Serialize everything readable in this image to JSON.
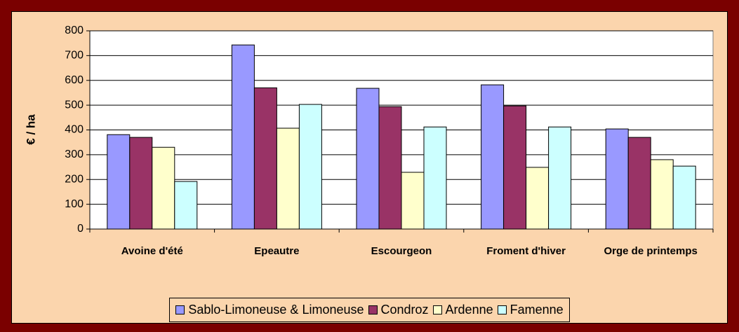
{
  "chart_data": {
    "type": "bar",
    "y_label": "€ / ha",
    "categories": [
      "Avoine d'été",
      "Epeautre",
      "Escourgeon",
      "Froment d'hiver",
      "Orge de printemps"
    ],
    "series": [
      {
        "name": "Sablo-Limoneuse & Limoneuse",
        "color": "#9999ff",
        "values": [
          381,
          743,
          568,
          582,
          404
        ]
      },
      {
        "name": "Condroz",
        "color": "#993366",
        "values": [
          370,
          570,
          494,
          497,
          370
        ]
      },
      {
        "name": "Ardenne",
        "color": "#ffffcc",
        "values": [
          330,
          407,
          229,
          249,
          280
        ]
      },
      {
        "name": "Famenne",
        "color": "#ccffff",
        "values": [
          192,
          503,
          412,
          412,
          254
        ]
      }
    ],
    "ylim": [
      0,
      800
    ],
    "yticks": [
      0,
      100,
      200,
      300,
      400,
      500,
      600,
      700,
      800
    ],
    "grid": true,
    "legend": "bottom"
  }
}
